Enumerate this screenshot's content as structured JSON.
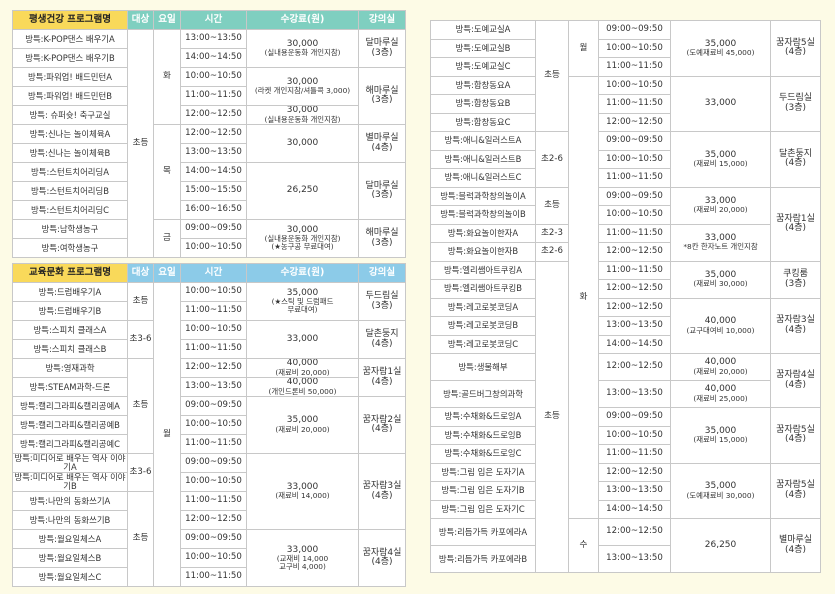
{
  "colors": {
    "background": "#fdfbe6",
    "name_header": "#f9d95a",
    "health_header": "#7fcfc0",
    "culture_header": "#8ccbe8"
  },
  "health": {
    "headers": [
      "평생건강 프로그램명",
      "대상",
      "요일",
      "시간",
      "수강료(원)",
      "강의실"
    ],
    "rows": [
      {
        "name": "방특:K-POP댄스 배우기A",
        "time": "13:00~13:50"
      },
      {
        "name": "방특:K-POP댄스 배우기B",
        "time": "14:00~14:50"
      },
      {
        "name": "방특:파워업! 배드민턴A",
        "time": "10:00~10:50"
      },
      {
        "name": "방특:파워업! 배드민턴B",
        "time": "11:00~11:50"
      },
      {
        "name": "방특: 슈퍼슛! 축구교실",
        "time": "12:00~12:50"
      },
      {
        "name": "방특:신나는 놀이체육A",
        "time": "12:00~12:50"
      },
      {
        "name": "방특:신나는 놀이체육B",
        "time": "13:00~13:50"
      },
      {
        "name": "방특:스턴트치어리딩A",
        "time": "14:00~14:50"
      },
      {
        "name": "방특:스턴트치어리딩B",
        "time": "15:00~15:50"
      },
      {
        "name": "방특:스턴트치어리딩C",
        "time": "16:00~16:50"
      },
      {
        "name": "방특:남학생농구",
        "time": "09:00~09:50"
      },
      {
        "name": "방특:여학생농구",
        "time": "10:00~10:50"
      }
    ],
    "targets": [
      {
        "label": "초등",
        "count": 12
      }
    ],
    "days": [
      {
        "label": "화",
        "count": 5
      },
      {
        "label": "목",
        "count": 5
      },
      {
        "label": "금",
        "count": 2
      }
    ],
    "fees": [
      {
        "amount": "30,000",
        "notes": [
          "(실내용운동화 개인지참)"
        ],
        "count": 2
      },
      {
        "amount": "30,000",
        "notes": [
          "(라켓 개인지참/셔틀콕 3,000)"
        ],
        "count": 2
      },
      {
        "amount": "30,000",
        "notes": [
          "(실내용운동화 개인지참)"
        ],
        "count": 1
      },
      {
        "amount": "30,000",
        "notes": [],
        "count": 2
      },
      {
        "amount": "26,250",
        "notes": [],
        "count": 3
      },
      {
        "amount": "30,000",
        "notes": [
          "(실내용운동화 개인지참)",
          "(★농구공 무료대여)"
        ],
        "count": 2
      }
    ],
    "rooms": [
      {
        "label": "달마루실",
        "floor": "(3층)",
        "count": 2
      },
      {
        "label": "해마루실",
        "floor": "(3층)",
        "count": 3
      },
      {
        "label": "별마루실",
        "floor": "(4층)",
        "count": 2
      },
      {
        "label": "달마루실",
        "floor": "(3층)",
        "count": 3
      },
      {
        "label": "해마루실",
        "floor": "(3층)",
        "count": 2
      }
    ]
  },
  "culture": {
    "headers": [
      "교육문화 프로그램명",
      "대상",
      "요일",
      "시간",
      "수강료(원)",
      "강의실"
    ],
    "rows": [
      {
        "name": "방특:드럼배우기A",
        "time": "10:00~10:50"
      },
      {
        "name": "방특:드럼배우기B",
        "time": "11:00~11:50"
      },
      {
        "name": "방특:스피치 클래스A",
        "time": "10:00~10:50"
      },
      {
        "name": "방특:스피치 클래스B",
        "time": "11:00~11:50"
      },
      {
        "name": "방특:영재과학",
        "time": "12:00~12:50"
      },
      {
        "name": "방특:STEAM과학-드론",
        "time": "13:00~13:50"
      },
      {
        "name": "방특:캘리그라피&캘리공예A",
        "time": "09:00~09:50"
      },
      {
        "name": "방특:캘리그라피&캘리공예B",
        "time": "10:00~10:50"
      },
      {
        "name": "방특:캘리그라피&캘리공예C",
        "time": "11:00~11:50"
      },
      {
        "name": "방특:미디어로 배우는 역사 이야기A",
        "time": "09:00~09:50"
      },
      {
        "name": "방특:미디어로 배우는 역사 이야기B",
        "time": "10:00~10:50"
      },
      {
        "name": "방특:나만의 동화쓰기A",
        "time": "11:00~11:50"
      },
      {
        "name": "방특:나만의 동화쓰기B",
        "time": "12:00~12:50"
      },
      {
        "name": "방특:월요일체스A",
        "time": "09:00~09:50"
      },
      {
        "name": "방특:월요일체스B",
        "time": "10:00~10:50"
      },
      {
        "name": "방특:월요일체스C",
        "time": "11:00~11:50"
      }
    ],
    "targets": [
      {
        "label": "초등",
        "count": 2
      },
      {
        "label": "초3-6",
        "count": 2
      },
      {
        "label": "초등",
        "count": 5
      },
      {
        "label": "초3-6",
        "count": 2
      },
      {
        "label": "초등",
        "count": 5
      }
    ],
    "days": [
      {
        "label": "월",
        "count": 16
      }
    ],
    "fees": [
      {
        "amount": "35,000",
        "notes": [
          "(★스틱 및 드럼패드",
          "무료대여)"
        ],
        "count": 2
      },
      {
        "amount": "33,000",
        "notes": [],
        "count": 2
      },
      {
        "amount": "40,000",
        "notes": [
          "(재료비 20,000)"
        ],
        "count": 1
      },
      {
        "amount": "40,000",
        "notes": [
          "(개인드론비 50,000)"
        ],
        "count": 1
      },
      {
        "amount": "35,000",
        "notes": [
          "(재료비 20,000)"
        ],
        "count": 3
      },
      {
        "amount": "33,000",
        "notes": [
          "(재료비 14,000)"
        ],
        "count": 4
      },
      {
        "amount": "33,000",
        "notes": [
          "(교재비 14,000",
          "교구비 4,000)"
        ],
        "count": 3
      }
    ],
    "rooms": [
      {
        "label": "두드림실",
        "floor": "(3층)",
        "count": 2
      },
      {
        "label": "달촌둥지",
        "floor": "(4층)",
        "count": 2
      },
      {
        "label": "꿈자람1실",
        "floor": "(4층)",
        "count": 2
      },
      {
        "label": "꿈자람2실",
        "floor": "(4층)",
        "count": 3
      },
      {
        "label": "꿈자람3실",
        "floor": "(4층)",
        "count": 4
      },
      {
        "label": "꿈자람4실",
        "floor": "(4층)",
        "count": 3
      }
    ]
  },
  "culture_cont": {
    "rows": [
      {
        "name": "방특:도예교실A",
        "time": "09:00~09:50"
      },
      {
        "name": "방특:도예교실B",
        "time": "10:00~10:50"
      },
      {
        "name": "방특:도예교실C",
        "time": "11:00~11:50"
      },
      {
        "name": "방특:합창동요A",
        "time": "10:00~10:50"
      },
      {
        "name": "방특:합창동요B",
        "time": "11:00~11:50"
      },
      {
        "name": "방특:합창동요C",
        "time": "12:00~12:50"
      },
      {
        "name": "방특:애니&일러스트A",
        "time": "09:00~09:50"
      },
      {
        "name": "방특:애니&일러스트B",
        "time": "10:00~10:50"
      },
      {
        "name": "방특:애니&일러스트C",
        "time": "11:00~11:50"
      },
      {
        "name": "방특:블럭과학창의놀이A",
        "time": "09:00~09:50"
      },
      {
        "name": "방특:블럭과학창의놀이B",
        "time": "10:00~10:50"
      },
      {
        "name": "방특:화요놀이한자A",
        "time": "11:00~11:50"
      },
      {
        "name": "방특:화요놀이한자B",
        "time": "12:00~12:50"
      },
      {
        "name": "방특:엘리쌤아트쿠킹A",
        "time": "11:00~11:50"
      },
      {
        "name": "방특:엘리쌤아트쿠킹B",
        "time": "12:00~12:50"
      },
      {
        "name": "방특:레고로봇코딩A",
        "time": "12:00~12:50"
      },
      {
        "name": "방특:레고로봇코딩B",
        "time": "13:00~13:50"
      },
      {
        "name": "방특:레고로봇코딩C",
        "time": "14:00~14:50"
      },
      {
        "name": "방특:생물해부",
        "time": "12:00~12:50"
      },
      {
        "name": "방특:골드버그창의과학",
        "time": "13:00~13:50"
      },
      {
        "name": "방특:수채화&드로잉A",
        "time": "09:00~09:50"
      },
      {
        "name": "방특:수채화&드로잉B",
        "time": "10:00~10:50"
      },
      {
        "name": "방특:수채화&드로잉C",
        "time": "11:00~11:50"
      },
      {
        "name": "방특:그림 입은 도자기A",
        "time": "12:00~12:50"
      },
      {
        "name": "방특:그림 입은 도자기B",
        "time": "13:00~13:50"
      },
      {
        "name": "방특:그림 입은 도자기C",
        "time": "14:00~14:50"
      },
      {
        "name": "방특:리듬가득 카포에라A",
        "time": "12:00~12:50"
      },
      {
        "name": "방특:리듬가득 카포에라B",
        "time": "13:00~13:50"
      }
    ],
    "targets": [
      {
        "label": "초등",
        "count": 6
      },
      {
        "label": "초2-6",
        "count": 3
      },
      {
        "label": "초등",
        "count": 2
      },
      {
        "label": "초2-3",
        "count": 1
      },
      {
        "label": "초2-6",
        "count": 1
      },
      {
        "label": "초등",
        "count": 15
      }
    ],
    "days": [
      {
        "label": "월",
        "count": 3
      },
      {
        "label": "화",
        "count": 23
      },
      {
        "label": "수",
        "count": 2
      }
    ],
    "fees": [
      {
        "amount": "35,000",
        "notes": [
          "(도예재료비 45,000)"
        ],
        "count": 3
      },
      {
        "amount": "33,000",
        "notes": [],
        "count": 3
      },
      {
        "amount": "35,000",
        "notes": [
          "(재료비 15,000)"
        ],
        "count": 3
      },
      {
        "amount": "33,000",
        "notes": [
          "(재료비 20,000)"
        ],
        "count": 2
      },
      {
        "amount": "33,000",
        "notes": [
          "*8칸 한자노트 개인지참"
        ],
        "count": 2
      },
      {
        "amount": "35,000",
        "notes": [
          "(재료비 30,000)"
        ],
        "count": 2
      },
      {
        "amount": "40,000",
        "notes": [
          "(교구대여비 10,000)"
        ],
        "count": 3
      },
      {
        "amount": "40,000",
        "notes": [
          "(재료비 20,000)"
        ],
        "count": 1
      },
      {
        "amount": "40,000",
        "notes": [
          "(재료비 25,000)"
        ],
        "count": 1
      },
      {
        "amount": "35,000",
        "notes": [
          "(재료비 15,000)"
        ],
        "count": 3
      },
      {
        "amount": "35,000",
        "notes": [
          "(도예재료비 30,000)"
        ],
        "count": 3
      },
      {
        "amount": "26,250",
        "notes": [],
        "count": 2
      }
    ],
    "rooms": [
      {
        "label": "꿈자람5실",
        "floor": "(4층)",
        "count": 3
      },
      {
        "label": "두드림실",
        "floor": "(3층)",
        "count": 3
      },
      {
        "label": "달촌둥지",
        "floor": "(4층)",
        "count": 3
      },
      {
        "label": "꿈자람1실",
        "floor": "(4층)",
        "count": 4
      },
      {
        "label": "쿠킹룸",
        "floor": "(3층)",
        "count": 2
      },
      {
        "label": "꿈자람3실",
        "floor": "(4층)",
        "count": 3
      },
      {
        "label": "꿈자람4실",
        "floor": "(4층)",
        "count": 2
      },
      {
        "label": "꿈자람5실",
        "floor": "(4층)",
        "count": 3
      },
      {
        "label": "꿈자람5실",
        "floor": "(4층)",
        "count": 3
      },
      {
        "label": "별마루실",
        "floor": "(4층)",
        "count": 2
      }
    ]
  }
}
